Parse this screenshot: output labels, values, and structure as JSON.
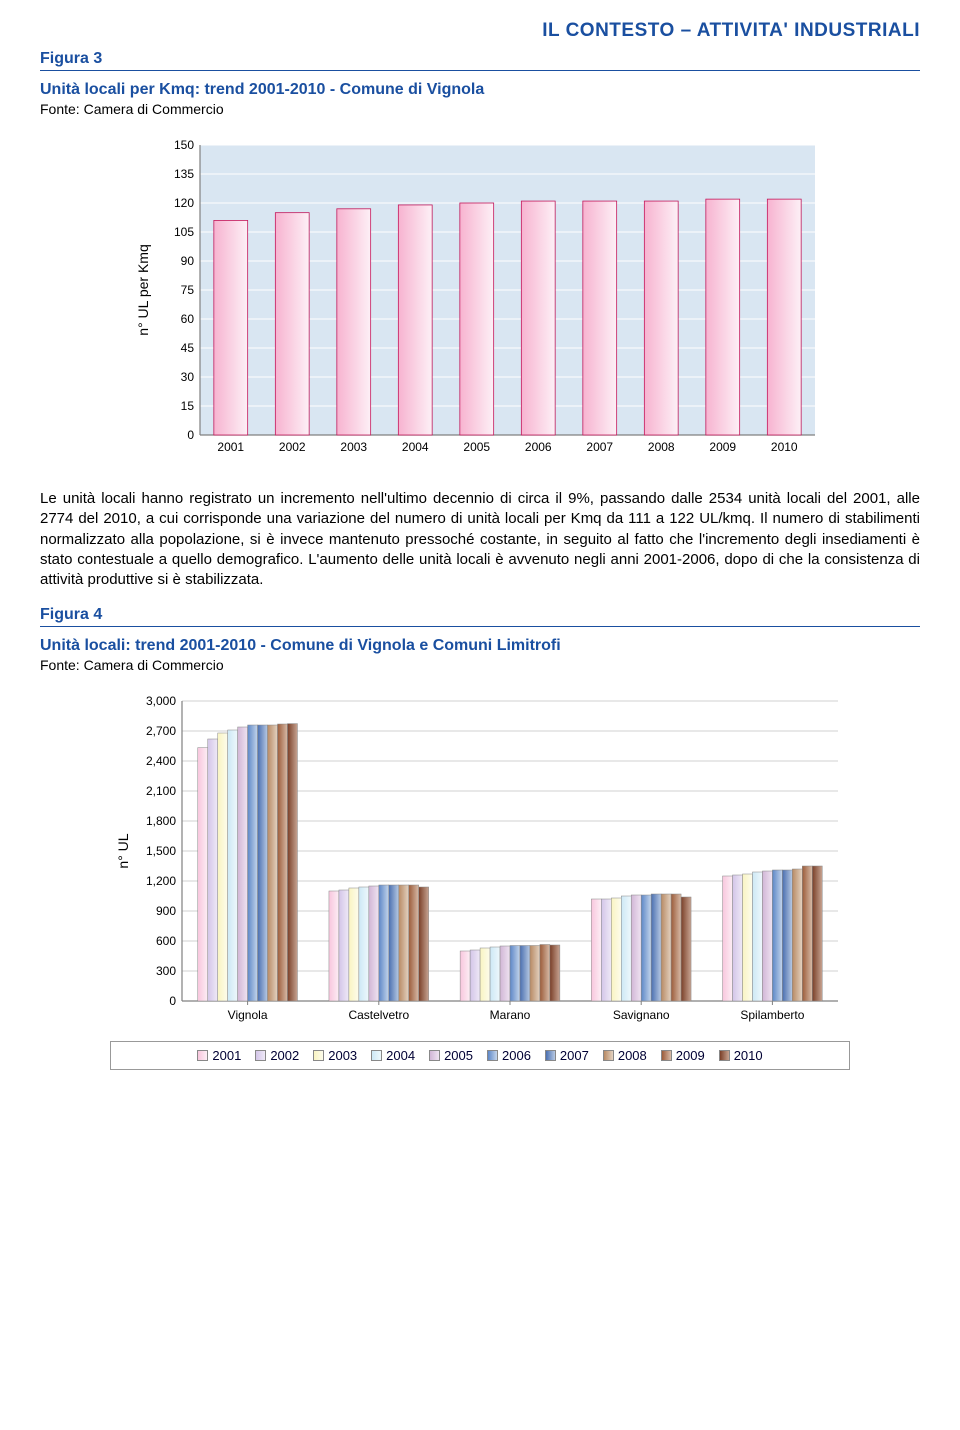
{
  "header_title": "IL CONTESTO – ATTIVITA' INDUSTRIALI",
  "figure3": {
    "label": "Figura 3",
    "title": "Unità locali per Kmq: trend 2001-2010 - Comune di Vignola",
    "source": "Fonte: Camera di Commercio",
    "chart": {
      "type": "bar",
      "categories": [
        "2001",
        "2002",
        "2003",
        "2004",
        "2005",
        "2006",
        "2007",
        "2008",
        "2009",
        "2010"
      ],
      "values": [
        111,
        115,
        117,
        119,
        120,
        121,
        121,
        121,
        122,
        122
      ],
      "ylabel": "n° UL per Kmq",
      "ylim": [
        0,
        150
      ],
      "ytick_step": 15,
      "yticks": [
        0,
        15,
        30,
        45,
        60,
        75,
        90,
        105,
        120,
        135,
        150
      ],
      "bar_gradient_start": "#f7b3d0",
      "bar_gradient_end": "#fdf0f6",
      "bar_border": "#c2185b",
      "plot_bg": "#d9e6f2",
      "grid_color": "#ffffff",
      "axis_color": "#808080",
      "tick_font_size": 12,
      "label_font_size": 14,
      "bar_width_ratio": 0.55
    }
  },
  "body_paragraph": "Le unità locali hanno registrato un incremento nell'ultimo decennio di circa il 9%, passando dalle 2534 unità locali del 2001, alle 2774 del 2010, a cui corrisponde una variazione del numero di unità locali per Kmq da 111 a 122 UL/kmq. Il numero di stabilimenti normalizzato alla popolazione, si è invece mantenuto pressoché costante, in seguito al fatto che l'incremento degli insediamenti è stato contestuale a quello demografico. L'aumento delle unità locali è avvenuto negli anni 2001-2006, dopo di che la consistenza di attività produttive si è stabilizzata.",
  "figure4": {
    "label": "Figura 4",
    "title": "Unità locali: trend 2001-2010 - Comune di Vignola e Comuni Limitrofi",
    "source": "Fonte: Camera di Commercio",
    "chart": {
      "type": "grouped_bar",
      "groups": [
        "Vignola",
        "Castelvetro",
        "Marano",
        "Savignano",
        "Spilamberto"
      ],
      "series_labels": [
        "2001",
        "2002",
        "2003",
        "2004",
        "2005",
        "2006",
        "2007",
        "2008",
        "2009",
        "2010"
      ],
      "data": {
        "Vignola": [
          2534,
          2620,
          2680,
          2710,
          2740,
          2760,
          2760,
          2760,
          2770,
          2774
        ],
        "Castelvetro": [
          1100,
          1110,
          1130,
          1140,
          1150,
          1160,
          1160,
          1160,
          1160,
          1140
        ],
        "Marano": [
          500,
          510,
          530,
          540,
          550,
          555,
          555,
          555,
          565,
          560
        ],
        "Savignano": [
          1020,
          1020,
          1030,
          1050,
          1060,
          1060,
          1070,
          1070,
          1070,
          1040
        ],
        "Spilamberto": [
          1250,
          1260,
          1270,
          1290,
          1300,
          1310,
          1310,
          1320,
          1350,
          1350
        ]
      },
      "series_colors": [
        {
          "start": "#f8c6dd",
          "end": "#fdeef5"
        },
        {
          "start": "#d3c5e8",
          "end": "#efe9f7"
        },
        {
          "start": "#f9f4c2",
          "end": "#fdfcec"
        },
        {
          "start": "#cde8f5",
          "end": "#eef8fc"
        },
        {
          "start": "#d1b6d6",
          "end": "#efe3f1"
        },
        {
          "start": "#5d87c7",
          "end": "#c4d5eb"
        },
        {
          "start": "#4a6fb0",
          "end": "#b7c9e3"
        },
        {
          "start": "#b88a64",
          "end": "#e3d2c1"
        },
        {
          "start": "#9c5c3a",
          "end": "#d7bba8"
        },
        {
          "start": "#7a3f28",
          "end": "#c7a492"
        }
      ],
      "ylabel": "n° UL",
      "ylim": [
        0,
        3000
      ],
      "ytick_step": 300,
      "yticks": [
        0,
        300,
        600,
        900,
        1200,
        1500,
        1800,
        2100,
        2400,
        2700,
        3000
      ],
      "ytick_labels": [
        "0",
        "300",
        "600",
        "900",
        "1,200",
        "1,500",
        "1,800",
        "2,100",
        "2,400",
        "2,700",
        "3,000"
      ],
      "plot_bg": "#ffffff",
      "grid_color": "#c0c0c0",
      "axis_color": "#808080",
      "tick_font_size": 12,
      "label_font_size": 14,
      "bar_border": "#888888"
    }
  }
}
